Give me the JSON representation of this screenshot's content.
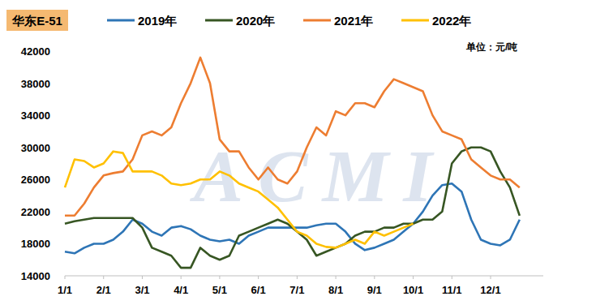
{
  "chart_data": {
    "type": "line",
    "title": "华东E-51",
    "ylabel": "单位：元/吨",
    "annotations": [
      "ACMI"
    ],
    "categories": [
      "1/1",
      null,
      null,
      null,
      "2/1",
      null,
      null,
      null,
      "3/1",
      null,
      null,
      null,
      "4/1",
      null,
      null,
      null,
      "5/1",
      null,
      null,
      null,
      "6/1",
      null,
      null,
      null,
      "7/1",
      null,
      null,
      null,
      "8/1",
      null,
      null,
      null,
      "9/1",
      null,
      null,
      null,
      "10/1",
      null,
      null,
      null,
      "11/1",
      null,
      null,
      null,
      "12/1",
      null,
      null,
      null
    ],
    "series": [
      {
        "name": "2019年",
        "color": "#2e75b6",
        "values": [
          17000,
          16800,
          17500,
          18000,
          18000,
          18500,
          19500,
          21000,
          20500,
          19500,
          19000,
          20000,
          20200,
          19800,
          19000,
          18500,
          18300,
          18500,
          18000,
          19000,
          19500,
          20000,
          20000,
          20000,
          20000,
          20000,
          20300,
          20500,
          20500,
          19500,
          18000,
          17200,
          17500,
          18000,
          18500,
          19500,
          20500,
          22000,
          24000,
          25300,
          25500,
          24500,
          21000,
          18500,
          18000,
          17800,
          18500,
          21000
        ]
      },
      {
        "name": "2020年",
        "color": "#375623",
        "values": [
          20500,
          20800,
          21000,
          21200,
          21200,
          21200,
          21200,
          21200,
          20000,
          17500,
          17000,
          16500,
          15000,
          15000,
          17500,
          16500,
          16000,
          16500,
          19000,
          19500,
          20000,
          20500,
          21000,
          20500,
          19500,
          18500,
          16500,
          17000,
          17500,
          18000,
          19000,
          19500,
          19500,
          20000,
          20000,
          20500,
          20500,
          21000,
          21000,
          22000,
          28000,
          29500,
          30000,
          30000,
          29500,
          27000,
          25000,
          21500
        ]
      },
      {
        "name": "2021年",
        "color": "#ed7d31",
        "values": [
          21500,
          21500,
          23000,
          25000,
          26500,
          26800,
          27000,
          28500,
          31500,
          32000,
          31500,
          32500,
          35500,
          38000,
          41200,
          38000,
          31000,
          29500,
          29500,
          27500,
          26000,
          27500,
          26000,
          25500,
          27000,
          30000,
          32500,
          31500,
          34500,
          34000,
          35500,
          35500,
          35000,
          37000,
          38500,
          38000,
          37500,
          37000,
          34000,
          32000,
          31500,
          31000,
          28500,
          27500,
          26500,
          26000,
          26000,
          25000
        ]
      },
      {
        "name": "2022年",
        "color": "#ffc000",
        "values": [
          25000,
          28500,
          28300,
          27500,
          28000,
          29500,
          29300,
          27000,
          27000,
          27000,
          26500,
          25500,
          25300,
          25500,
          26000,
          26000,
          27000,
          26500,
          25500,
          25000,
          24500,
          23500,
          22500,
          21000,
          19500,
          19000,
          18000,
          17600,
          17500,
          18000,
          18500,
          18000,
          19500,
          19000,
          19500,
          20000,
          20500,
          null,
          null,
          null,
          null,
          null,
          null,
          null,
          null,
          null,
          null,
          null
        ]
      }
    ],
    "ylim": [
      14000,
      42000
    ],
    "yticks": [
      14000,
      18000,
      22000,
      26000,
      30000,
      34000,
      38000,
      42000
    ],
    "grid": false,
    "legend": "top"
  }
}
